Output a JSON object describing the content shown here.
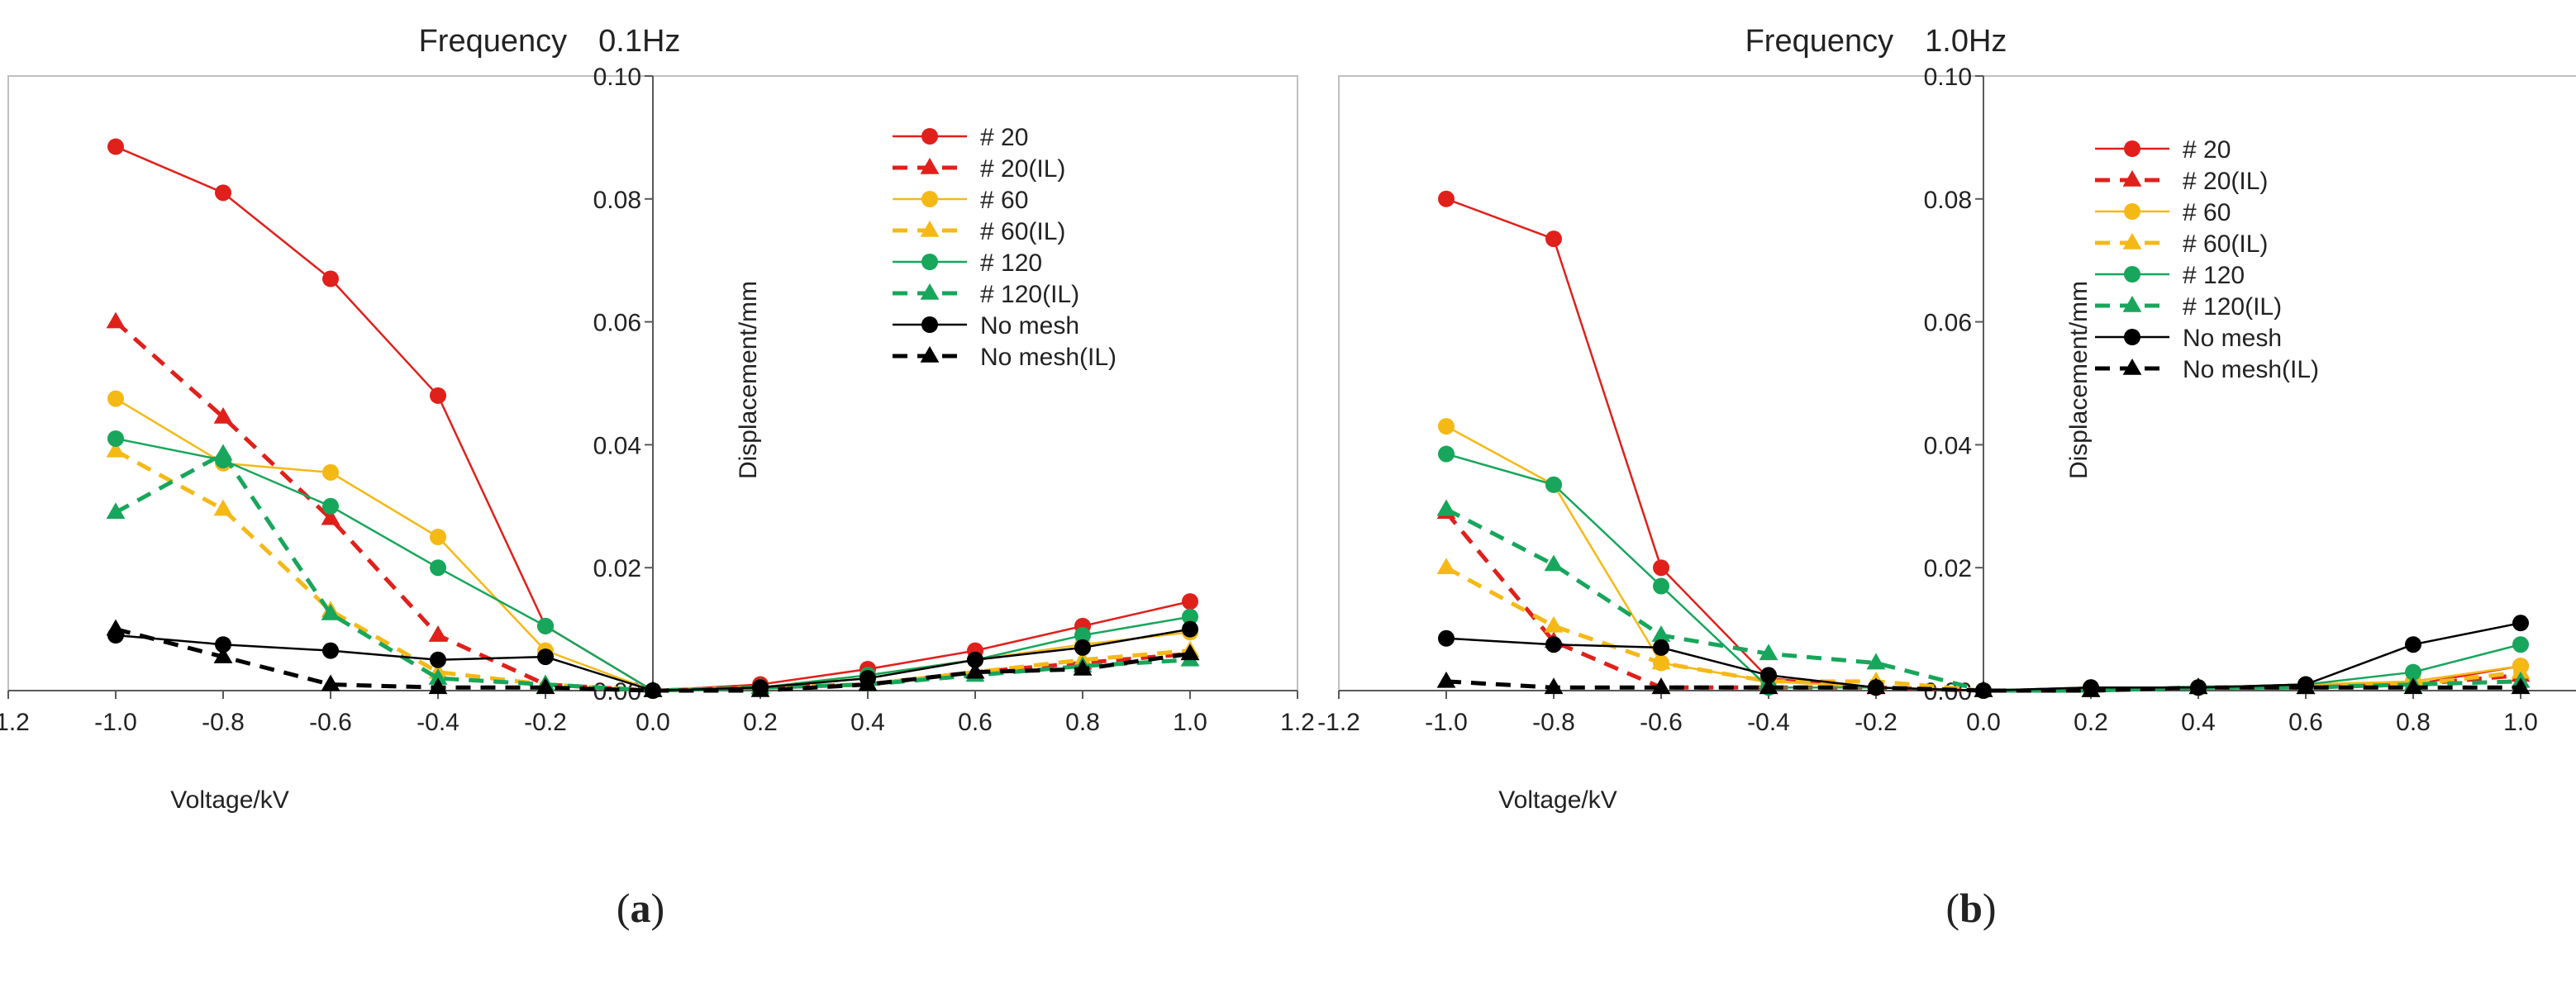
{
  "chart_data": [
    {
      "type": "line",
      "title": "Frequency　0.1Hz",
      "xlabel": "Voltage/kV",
      "ylabel": "Displacement/mm",
      "panel_label": {
        "open": "(",
        "letter": "a",
        "close": ")"
      },
      "xlim": [
        -1.2,
        1.2
      ],
      "ylim": [
        0,
        0.1
      ],
      "xticks": [
        "-1.2",
        "-1.0",
        "-0.8",
        "-0.6",
        "-0.4",
        "-0.2",
        "0.0",
        "0.2",
        "0.4",
        "0.6",
        "0.8",
        "1.0",
        "1.2"
      ],
      "yticks": [
        "0.00",
        "0.02",
        "0.04",
        "0.06",
        "0.08",
        "0.10"
      ],
      "grid": false,
      "legend_position": "top-right",
      "x": [
        -1.0,
        -0.8,
        -0.6,
        -0.4,
        -0.2,
        0.0,
        0.2,
        0.4,
        0.6,
        0.8,
        1.0
      ],
      "series": [
        {
          "name": "# 20",
          "color": "#e0201b",
          "dashed": false,
          "marker": "circle",
          "values": [
            0.0885,
            0.081,
            0.067,
            0.048,
            0.0105,
            0.0,
            0.001,
            0.0035,
            0.0065,
            0.0105,
            0.0145
          ]
        },
        {
          "name": "# 20(IL)",
          "color": "#e0201b",
          "dashed": true,
          "marker": "triangle",
          "values": [
            0.06,
            0.0445,
            0.028,
            0.009,
            0.001,
            0.0,
            0.0005,
            0.001,
            0.003,
            0.0045,
            0.006
          ]
        },
        {
          "name": "# 60",
          "color": "#f5b916",
          "dashed": false,
          "marker": "circle",
          "values": [
            0.0475,
            0.037,
            0.0355,
            0.025,
            0.0065,
            0.0,
            0.0005,
            0.0025,
            0.005,
            0.0075,
            0.0095
          ]
        },
        {
          "name": "# 60(IL)",
          "color": "#f5b916",
          "dashed": true,
          "marker": "triangle",
          "values": [
            0.039,
            0.0295,
            0.013,
            0.003,
            0.001,
            0.0,
            0.0005,
            0.001,
            0.003,
            0.005,
            0.0065
          ]
        },
        {
          "name": "# 120",
          "color": "#17a65b",
          "dashed": false,
          "marker": "circle",
          "values": [
            0.041,
            0.0375,
            0.03,
            0.02,
            0.0105,
            0.0,
            0.0005,
            0.0025,
            0.005,
            0.009,
            0.012
          ]
        },
        {
          "name": "# 120(IL)",
          "color": "#17a65b",
          "dashed": true,
          "marker": "triangle",
          "values": [
            0.029,
            0.0385,
            0.0125,
            0.002,
            0.001,
            0.0,
            0.0005,
            0.001,
            0.0025,
            0.004,
            0.005
          ]
        },
        {
          "name": "No mesh",
          "color": "#000000",
          "dashed": false,
          "marker": "circle",
          "values": [
            0.009,
            0.0075,
            0.0065,
            0.005,
            0.0055,
            0.0,
            0.0005,
            0.002,
            0.005,
            0.007,
            0.01
          ]
        },
        {
          "name": "No mesh(IL)",
          "color": "#000000",
          "dashed": true,
          "marker": "triangle",
          "values": [
            0.01,
            0.0055,
            0.001,
            0.0005,
            0.0005,
            0.0,
            0.0,
            0.001,
            0.003,
            0.0035,
            0.006
          ]
        }
      ]
    },
    {
      "type": "line",
      "title": "Frequency　1.0Hz",
      "xlabel": "Voltage/kV",
      "ylabel": "Displacement/mm",
      "panel_label": {
        "open": "(",
        "letter": "b",
        "close": ")"
      },
      "xlim": [
        -1.2,
        1.2
      ],
      "ylim": [
        0,
        0.1
      ],
      "xticks": [
        "-1.2",
        "-1.0",
        "-0.8",
        "-0.6",
        "-0.4",
        "-0.2",
        "0.0",
        "0.2",
        "0.4",
        "0.6",
        "0.8",
        "1.0",
        "1.2"
      ],
      "yticks": [
        "0.00",
        "0.02",
        "0.04",
        "0.06",
        "0.08",
        "0.10"
      ],
      "grid": false,
      "legend_position": "top-right",
      "x": [
        -1.0,
        -0.8,
        -0.6,
        -0.4,
        -0.2,
        0.0,
        0.2,
        0.4,
        0.6,
        0.8,
        1.0
      ],
      "series": [
        {
          "name": "# 20",
          "color": "#e0201b",
          "dashed": false,
          "marker": "circle",
          "values": [
            0.08,
            0.0735,
            0.02,
            0.002,
            0.0005,
            0.0,
            0.0005,
            0.0005,
            0.001,
            0.001,
            0.004
          ]
        },
        {
          "name": "# 20(IL)",
          "color": "#e0201b",
          "dashed": true,
          "marker": "triangle",
          "values": [
            0.029,
            0.008,
            0.0005,
            0.0005,
            0.0005,
            0.0,
            0.0,
            0.0005,
            0.0005,
            0.001,
            0.0025
          ]
        },
        {
          "name": "# 60",
          "color": "#f5b916",
          "dashed": false,
          "marker": "circle",
          "values": [
            0.043,
            0.0335,
            0.0045,
            0.0015,
            0.0005,
            0.0,
            0.0005,
            0.0005,
            0.001,
            0.0015,
            0.004
          ]
        },
        {
          "name": "# 60(IL)",
          "color": "#f5b916",
          "dashed": true,
          "marker": "triangle",
          "values": [
            0.02,
            0.0105,
            0.0045,
            0.0015,
            0.0015,
            0.0,
            0.0,
            0.0005,
            0.0005,
            0.001,
            0.003
          ]
        },
        {
          "name": "# 120",
          "color": "#17a65b",
          "dashed": false,
          "marker": "circle",
          "values": [
            0.0385,
            0.0335,
            0.017,
            0.0005,
            0.0005,
            0.0,
            0.0005,
            0.0005,
            0.001,
            0.003,
            0.0075
          ]
        },
        {
          "name": "# 120(IL)",
          "color": "#17a65b",
          "dashed": true,
          "marker": "triangle",
          "values": [
            0.0295,
            0.0205,
            0.009,
            0.006,
            0.0045,
            0.0,
            0.0,
            0.0005,
            0.0005,
            0.001,
            0.0015
          ]
        },
        {
          "name": "No mesh",
          "color": "#000000",
          "dashed": false,
          "marker": "circle",
          "values": [
            0.0085,
            0.0075,
            0.007,
            0.0025,
            0.0005,
            0.0,
            0.0005,
            0.0005,
            0.001,
            0.0075,
            0.011
          ]
        },
        {
          "name": "No mesh(IL)",
          "color": "#000000",
          "dashed": true,
          "marker": "triangle",
          "values": [
            0.0015,
            0.0005,
            0.0005,
            0.0005,
            0.0005,
            0.0,
            0.0,
            0.0005,
            0.0005,
            0.0005,
            0.0005
          ]
        }
      ]
    }
  ]
}
